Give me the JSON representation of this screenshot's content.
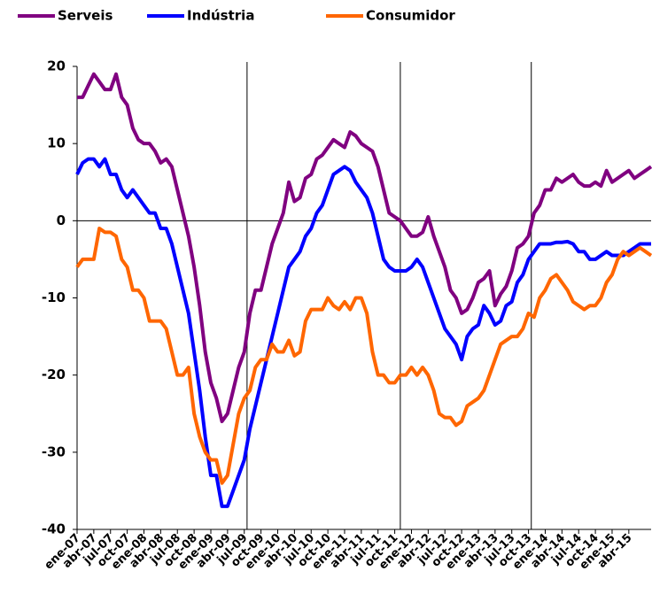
{
  "chart_data": {
    "type": "line",
    "categories": [
      "ene-07",
      null,
      null,
      "abr-07",
      null,
      null,
      "jul-07",
      null,
      null,
      "oct-07",
      null,
      null,
      "ene-08",
      null,
      null,
      "abr-08",
      null,
      null,
      "jul-08",
      null,
      null,
      "oct-08",
      null,
      null,
      "ene-09",
      null,
      null,
      "abr-09",
      null,
      null,
      "jul-09",
      null,
      null,
      "oct-09",
      null,
      null,
      "ene-10",
      null,
      null,
      "abr-10",
      null,
      null,
      "jul-10",
      null,
      null,
      "oct-10",
      null,
      null,
      "ene-11",
      null,
      null,
      "abr-11",
      null,
      null,
      "jul-11",
      null,
      null,
      "oct-11",
      null,
      null,
      "ene-12",
      null,
      null,
      "abr-12",
      null,
      null,
      "jul-12",
      null,
      null,
      "oct-12",
      null,
      null,
      "ene-13",
      null,
      null,
      "abr-13",
      null,
      null,
      "jul-13",
      null,
      null,
      "oct-13",
      null,
      null,
      "ene-14",
      null,
      null,
      "abr-14",
      null,
      null,
      "jul-14",
      null,
      null,
      "oct-14",
      null,
      null,
      "ene-15",
      null,
      null,
      "abr-15",
      null,
      null,
      null,
      null
    ],
    "series": [
      {
        "name": "Serveis",
        "color": "#800080",
        "values": [
          16,
          16,
          17.5,
          19,
          18,
          17,
          17,
          19,
          16,
          15,
          12,
          10.5,
          10,
          10,
          9,
          7.5,
          8,
          7,
          4,
          1,
          -2,
          -6,
          -11,
          -17,
          -21,
          -23,
          -26,
          -25,
          -22,
          -19,
          -17,
          -12,
          -9,
          -9,
          -6,
          -3,
          -1,
          1,
          5,
          2.5,
          3,
          5.5,
          6,
          8,
          8.5,
          9.5,
          10.5,
          10,
          9.5,
          11.5,
          11,
          10,
          9.5,
          9,
          7,
          4,
          1,
          0.5,
          0,
          -1,
          -2,
          -2,
          -1.5,
          0.5,
          -2,
          -4,
          -6,
          -9,
          -10,
          -12,
          -11.5,
          -10,
          -8,
          -7.5,
          -6.5,
          -11,
          -9.5,
          -8.5,
          -6.5,
          -3.5,
          -3,
          -2,
          1,
          2,
          4,
          4,
          5.5,
          5,
          5.5,
          6,
          5,
          4.5,
          4.5,
          5,
          4.5,
          6.5,
          5,
          5.5,
          6,
          6.5,
          5.5,
          6,
          6.5,
          7
        ]
      },
      {
        "name": "Indústria",
        "color": "#0000ff",
        "values": [
          6,
          7.5,
          8,
          8,
          7,
          8,
          6,
          6,
          4,
          3,
          4,
          3,
          2,
          1,
          1,
          -1,
          -1,
          -3,
          -6,
          -9,
          -12,
          -17,
          -22,
          -28,
          -33,
          -33,
          -37,
          -37,
          -35,
          -33,
          -31,
          -27,
          -24,
          -21,
          -18,
          -15,
          -12,
          -9,
          -6,
          -5,
          -4,
          -2,
          -1,
          1,
          2,
          4,
          6,
          6.5,
          7,
          6.5,
          5,
          4,
          3,
          1,
          -2,
          -5,
          -6,
          -6.5,
          -6.5,
          -6.5,
          -6,
          -5,
          -6,
          -8,
          -10,
          -12,
          -14,
          -15,
          -16,
          -18,
          -15,
          -14,
          -13.5,
          -11,
          -12,
          -13.5,
          -13,
          -11,
          -10.5,
          -8,
          -7,
          -5,
          -4,
          -3,
          -3,
          -3,
          -2.8,
          -2.8,
          -2.7,
          -3,
          -4,
          -4,
          -5,
          -5,
          -4.5,
          -4,
          -4.5,
          -4.5,
          -4.5,
          -4,
          -3.5,
          -3,
          -3,
          -3
        ]
      },
      {
        "name": "Consumidor",
        "color": "#ff6600",
        "values": [
          -6,
          -5,
          -5,
          -5,
          -1,
          -1.5,
          -1.5,
          -2,
          -5,
          -6,
          -9,
          -9,
          -10,
          -13,
          -13,
          -13,
          -14,
          -17,
          -20,
          -20,
          -19,
          -25,
          -28,
          -30,
          -31,
          -31,
          -34,
          -33,
          -29,
          -25,
          -23,
          -22,
          -19,
          -18,
          -18,
          -16,
          -17,
          -17,
          -15.5,
          -17.5,
          -17,
          -13,
          -11.5,
          -11.5,
          -11.5,
          -10,
          -11,
          -11.5,
          -10.5,
          -11.5,
          -10,
          -10,
          -12,
          -17,
          -20,
          -20,
          -21,
          -21,
          -20,
          -20,
          -19,
          -20,
          -19,
          -20,
          -22,
          -25,
          -25.5,
          -25.5,
          -26.5,
          -26,
          -24,
          -23.5,
          -23,
          -22,
          -20,
          -18,
          -16,
          -15.5,
          -15,
          -15,
          -14,
          -12,
          -12.5,
          -10,
          -9,
          -7.5,
          -7,
          -8,
          -9,
          -10.5,
          -11,
          -11.5,
          -11,
          -11,
          -10,
          -8,
          -7,
          -5,
          -4,
          -4.5,
          -4,
          -3.5,
          -4,
          -4.5
        ]
      }
    ],
    "ylim": [
      -40,
      20
    ],
    "yticks": [
      -40,
      -30,
      -20,
      -10,
      0,
      10,
      20
    ]
  }
}
